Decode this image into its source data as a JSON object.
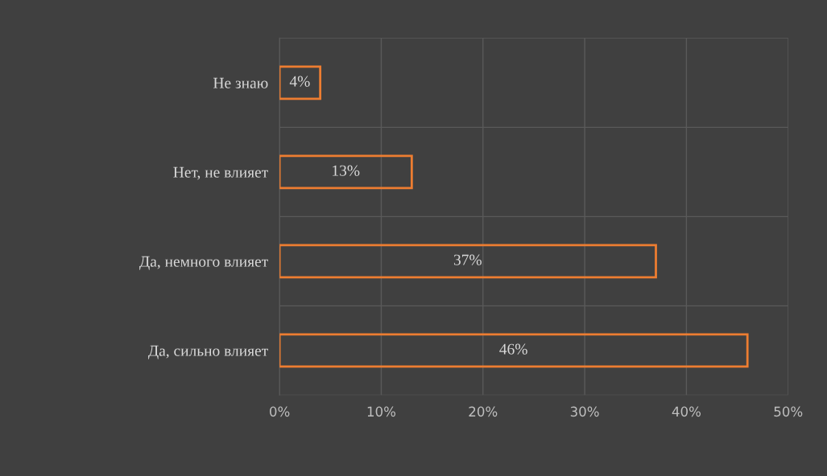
{
  "chart_data": {
    "type": "bar",
    "orientation": "horizontal",
    "categories": [
      "Не знаю",
      "Нет, не влияет",
      "Да, немного влияет",
      "Да, сильно влияет"
    ],
    "values": [
      4,
      13,
      37,
      46
    ],
    "color": "#ed7d31",
    "value_labels": [
      "4%",
      "13%",
      "37%",
      "46%"
    ],
    "xlim": [
      0,
      50
    ],
    "xticks": [
      {
        "value": 0,
        "label": "0%"
      },
      {
        "value": 10,
        "label": "10%"
      },
      {
        "value": 20,
        "label": "20%"
      },
      {
        "value": 30,
        "label": "30%"
      },
      {
        "value": 40,
        "label": "40%"
      },
      {
        "value": 50,
        "label": "50%"
      }
    ],
    "grid": true
  }
}
